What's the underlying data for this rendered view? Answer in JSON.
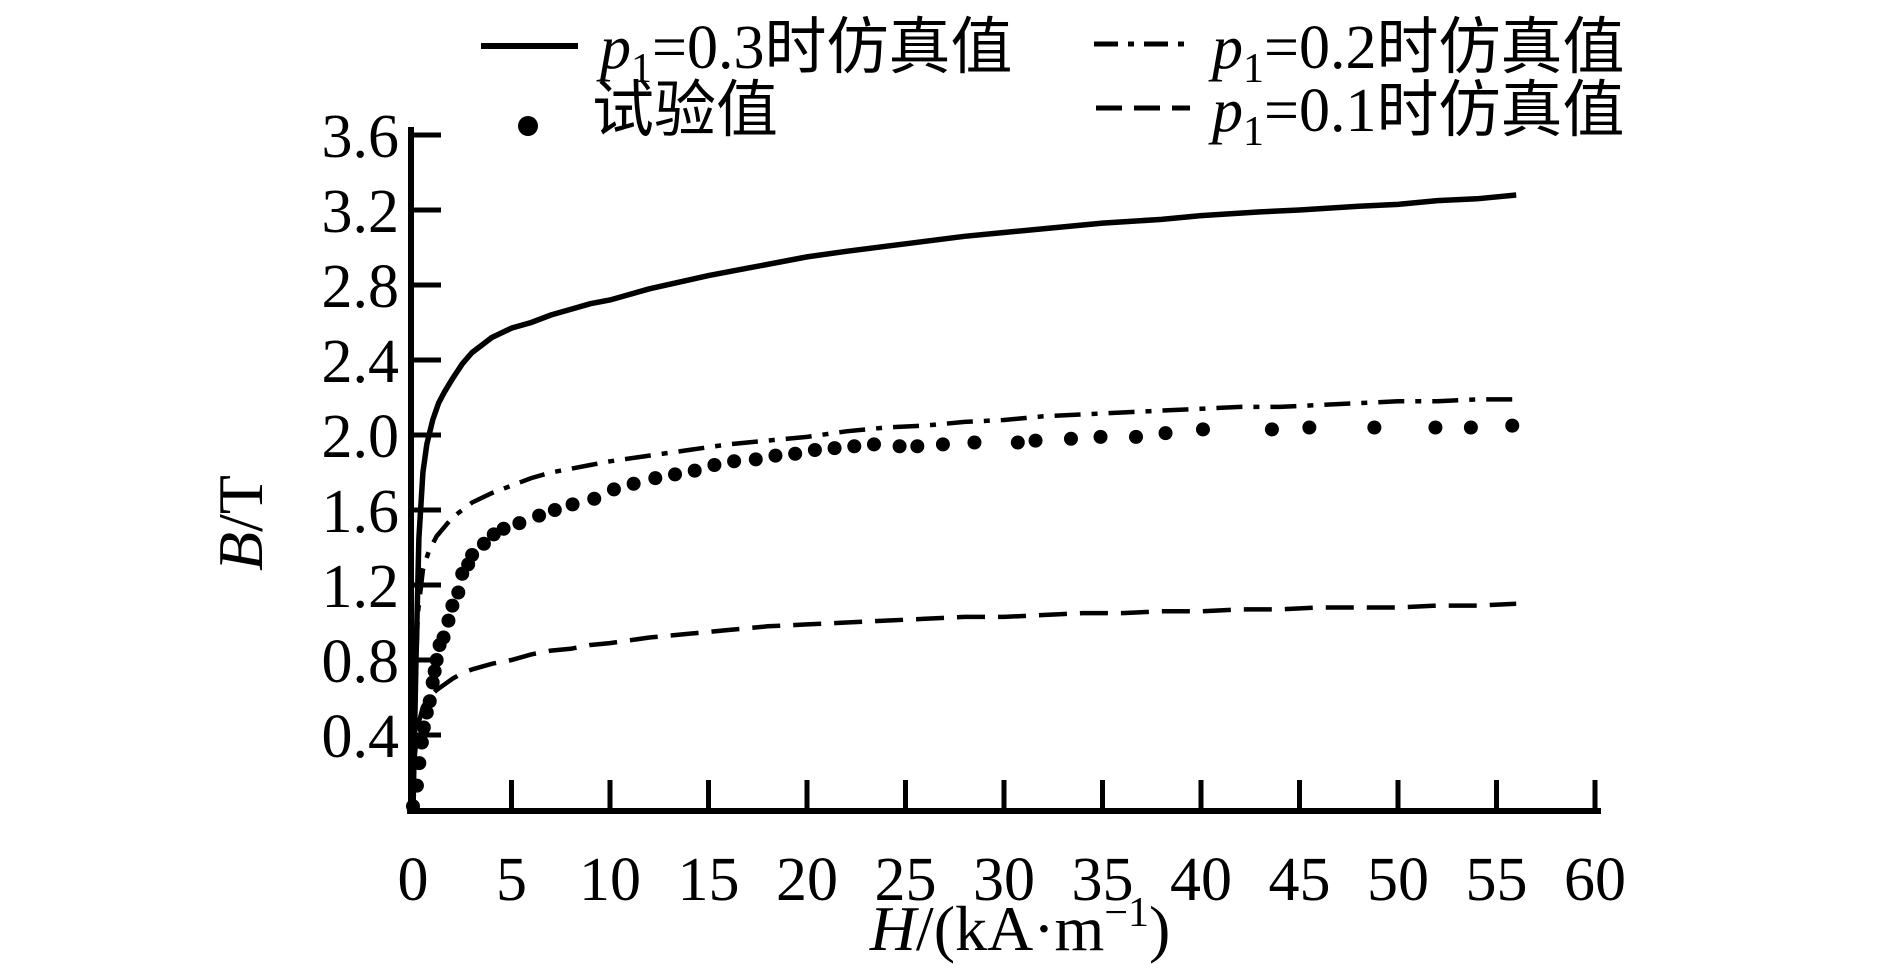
{
  "figure": {
    "background": "#ffffff",
    "ink": "#000000"
  },
  "legend": {
    "entries": [
      {
        "style": "solid-line",
        "var": "p",
        "sub": "1",
        "rest": "=0.3时仿真值"
      },
      {
        "style": "dot-marker",
        "var": "",
        "sub": "",
        "rest": "试验值"
      },
      {
        "style": "dashdot-line",
        "var": "p",
        "sub": "1",
        "rest": "=0.2时仿真值"
      },
      {
        "style": "dashed-line",
        "var": "p",
        "sub": "1",
        "rest": "=0.1时仿真值"
      }
    ]
  },
  "axes": {
    "y_label": {
      "var": "B",
      "sep": "/",
      "unit": "T"
    },
    "x_label": {
      "var": "H",
      "mid": "/(kA·m",
      "sup": "−1",
      "end": ")"
    },
    "x_ticks": [
      "0",
      "5",
      "10",
      "15",
      "20",
      "25",
      "30",
      "35",
      "40",
      "45",
      "50",
      "55",
      "60"
    ],
    "y_ticks": [
      "0.4",
      "0.8",
      "1.2",
      "1.6",
      "2.0",
      "2.4",
      "2.8",
      "3.2",
      "3.6"
    ]
  },
  "chart_data": {
    "type": "line",
    "title": "",
    "xlabel": "H/(kA·m−1)",
    "ylabel": "B/T",
    "xlim": [
      0,
      60
    ],
    "ylim": [
      0,
      3.6
    ],
    "x_tick_values": [
      0,
      5,
      10,
      15,
      20,
      25,
      30,
      35,
      40,
      45,
      50,
      55,
      60
    ],
    "y_tick_values": [
      0.4,
      0.8,
      1.2,
      1.6,
      2.0,
      2.4,
      2.8,
      3.2,
      3.6
    ],
    "grid": false,
    "legend_position": "top",
    "series": [
      {
        "name": "p1=0.3时仿真值",
        "kind": "line",
        "dash": "solid",
        "points": [
          [
            0,
            0
          ],
          [
            0.15,
            0.8
          ],
          [
            0.3,
            1.45
          ],
          [
            0.5,
            1.8
          ],
          [
            0.7,
            1.95
          ],
          [
            1.0,
            2.08
          ],
          [
            1.3,
            2.17
          ],
          [
            1.6,
            2.23
          ],
          [
            2.0,
            2.3
          ],
          [
            2.5,
            2.38
          ],
          [
            3,
            2.44
          ],
          [
            4,
            2.52
          ],
          [
            5,
            2.57
          ],
          [
            6,
            2.6
          ],
          [
            7,
            2.64
          ],
          [
            8,
            2.67
          ],
          [
            9,
            2.7
          ],
          [
            10,
            2.72
          ],
          [
            12,
            2.78
          ],
          [
            15,
            2.85
          ],
          [
            17,
            2.89
          ],
          [
            20,
            2.95
          ],
          [
            22,
            2.98
          ],
          [
            25,
            3.02
          ],
          [
            28,
            3.06
          ],
          [
            30,
            3.08
          ],
          [
            33,
            3.11
          ],
          [
            35,
            3.13
          ],
          [
            38,
            3.15
          ],
          [
            40,
            3.17
          ],
          [
            43,
            3.19
          ],
          [
            45,
            3.2
          ],
          [
            48,
            3.22
          ],
          [
            50,
            3.23
          ],
          [
            52,
            3.25
          ],
          [
            54,
            3.26
          ],
          [
            56,
            3.28
          ]
        ]
      },
      {
        "name": "试验值",
        "kind": "scatter",
        "dash": "none",
        "points": [
          [
            0,
            0.02
          ],
          [
            0.2,
            0.13
          ],
          [
            0.32,
            0.25
          ],
          [
            0.45,
            0.36
          ],
          [
            0.55,
            0.44
          ],
          [
            0.7,
            0.52
          ],
          [
            0.85,
            0.58
          ],
          [
            1.0,
            0.68
          ],
          [
            1.1,
            0.74
          ],
          [
            1.2,
            0.8
          ],
          [
            1.35,
            0.88
          ],
          [
            1.55,
            0.92
          ],
          [
            1.8,
            1.01
          ],
          [
            2.0,
            1.09
          ],
          [
            2.3,
            1.16
          ],
          [
            2.5,
            1.26
          ],
          [
            2.8,
            1.31
          ],
          [
            3.0,
            1.36
          ],
          [
            3.6,
            1.42
          ],
          [
            4.1,
            1.47
          ],
          [
            4.6,
            1.5
          ],
          [
            5.4,
            1.53
          ],
          [
            6.4,
            1.57
          ],
          [
            7.2,
            1.6
          ],
          [
            8.1,
            1.63
          ],
          [
            9.2,
            1.66
          ],
          [
            10.2,
            1.71
          ],
          [
            11.2,
            1.74
          ],
          [
            12.3,
            1.77
          ],
          [
            13.3,
            1.79
          ],
          [
            14.3,
            1.81
          ],
          [
            15.3,
            1.84
          ],
          [
            16.3,
            1.86
          ],
          [
            17.4,
            1.87
          ],
          [
            18.4,
            1.89
          ],
          [
            19.4,
            1.9
          ],
          [
            20.4,
            1.92
          ],
          [
            21.4,
            1.93
          ],
          [
            22.4,
            1.94
          ],
          [
            23.4,
            1.95
          ],
          [
            24.7,
            1.94
          ],
          [
            25.6,
            1.94
          ],
          [
            26.9,
            1.95
          ],
          [
            28.5,
            1.96
          ],
          [
            30.7,
            1.96
          ],
          [
            31.6,
            1.97
          ],
          [
            33.4,
            1.98
          ],
          [
            34.9,
            1.99
          ],
          [
            36.7,
            1.99
          ],
          [
            38.2,
            2.01
          ],
          [
            40.1,
            2.03
          ],
          [
            43.6,
            2.03
          ],
          [
            45.5,
            2.04
          ],
          [
            48.8,
            2.04
          ],
          [
            51.9,
            2.04
          ],
          [
            53.7,
            2.04
          ],
          [
            55.8,
            2.05
          ]
        ]
      },
      {
        "name": "p1=0.2时仿真值",
        "kind": "line",
        "dash": "dashdot",
        "points": [
          [
            0,
            0
          ],
          [
            0.1,
            0.6
          ],
          [
            0.25,
            1.05
          ],
          [
            0.5,
            1.28
          ],
          [
            0.8,
            1.38
          ],
          [
            1.2,
            1.46
          ],
          [
            1.6,
            1.51
          ],
          [
            2,
            1.56
          ],
          [
            2.5,
            1.6
          ],
          [
            3,
            1.64
          ],
          [
            4,
            1.69
          ],
          [
            5,
            1.73
          ],
          [
            6,
            1.77
          ],
          [
            7,
            1.8
          ],
          [
            8,
            1.82
          ],
          [
            9,
            1.84
          ],
          [
            10,
            1.86
          ],
          [
            12,
            1.89
          ],
          [
            14,
            1.92
          ],
          [
            16,
            1.95
          ],
          [
            18,
            1.97
          ],
          [
            20,
            1.99
          ],
          [
            22,
            2.02
          ],
          [
            24,
            2.04
          ],
          [
            26,
            2.05
          ],
          [
            28,
            2.07
          ],
          [
            30,
            2.08
          ],
          [
            32,
            2.1
          ],
          [
            34,
            2.11
          ],
          [
            36,
            2.12
          ],
          [
            38,
            2.13
          ],
          [
            40,
            2.14
          ],
          [
            42,
            2.15
          ],
          [
            44,
            2.15
          ],
          [
            46,
            2.16
          ],
          [
            48,
            2.17
          ],
          [
            50,
            2.18
          ],
          [
            52,
            2.18
          ],
          [
            54,
            2.19
          ],
          [
            56,
            2.19
          ]
        ]
      },
      {
        "name": "p1=0.1时仿真值",
        "kind": "line",
        "dash": "dashed",
        "points": [
          [
            0,
            0
          ],
          [
            0.1,
            0.3
          ],
          [
            0.25,
            0.45
          ],
          [
            0.5,
            0.55
          ],
          [
            0.8,
            0.6
          ],
          [
            1.2,
            0.64
          ],
          [
            1.6,
            0.67
          ],
          [
            2,
            0.7
          ],
          [
            2.5,
            0.73
          ],
          [
            3,
            0.75
          ],
          [
            4,
            0.78
          ],
          [
            5,
            0.8
          ],
          [
            6,
            0.83
          ],
          [
            7,
            0.85
          ],
          [
            8,
            0.86
          ],
          [
            9,
            0.88
          ],
          [
            10,
            0.89
          ],
          [
            12,
            0.92
          ],
          [
            14,
            0.94
          ],
          [
            16,
            0.96
          ],
          [
            18,
            0.98
          ],
          [
            20,
            0.99
          ],
          [
            22,
            1.0
          ],
          [
            24,
            1.01
          ],
          [
            26,
            1.02
          ],
          [
            28,
            1.03
          ],
          [
            30,
            1.03
          ],
          [
            32,
            1.04
          ],
          [
            34,
            1.05
          ],
          [
            36,
            1.05
          ],
          [
            38,
            1.06
          ],
          [
            40,
            1.06
          ],
          [
            42,
            1.07
          ],
          [
            44,
            1.07
          ],
          [
            46,
            1.08
          ],
          [
            48,
            1.08
          ],
          [
            50,
            1.08
          ],
          [
            52,
            1.09
          ],
          [
            54,
            1.09
          ],
          [
            56,
            1.1
          ]
        ]
      }
    ]
  }
}
